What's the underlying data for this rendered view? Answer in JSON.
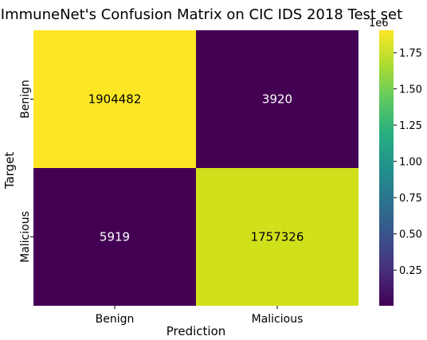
{
  "chart_data": {
    "type": "heatmap",
    "title": "ImmuneNet's Confusion Matrix on CIC IDS 2018 Test set",
    "xlabel": "Prediction",
    "ylabel": "Target",
    "x_categories": [
      "Benign",
      "Malicious"
    ],
    "y_categories": [
      "Benign",
      "Malicious"
    ],
    "values": [
      [
        1904482,
        3920
      ],
      [
        5919,
        1757326
      ]
    ],
    "cell_labels": [
      [
        "1904482",
        "3920"
      ],
      [
        "5919",
        "1757326"
      ]
    ],
    "cell_colors": [
      [
        "#fde725",
        "#440154"
      ],
      [
        "#440154",
        "#d0e11c"
      ]
    ],
    "cell_text_colors": [
      [
        "#000000",
        "#ffffff"
      ],
      [
        "#ffffff",
        "#000000"
      ]
    ],
    "colorbar": {
      "multiplier_label": "1e6",
      "ticks": [
        {
          "value": 250000,
          "label": "0.25"
        },
        {
          "value": 500000,
          "label": "0.50"
        },
        {
          "value": 750000,
          "label": "0.75"
        },
        {
          "value": 1000000,
          "label": "1.00"
        },
        {
          "value": 1250000,
          "label": "1.25"
        },
        {
          "value": 1500000,
          "label": "1.50"
        },
        {
          "value": 1750000,
          "label": "1.75"
        }
      ],
      "range": [
        3920,
        1904482
      ],
      "colormap": "viridis"
    }
  }
}
